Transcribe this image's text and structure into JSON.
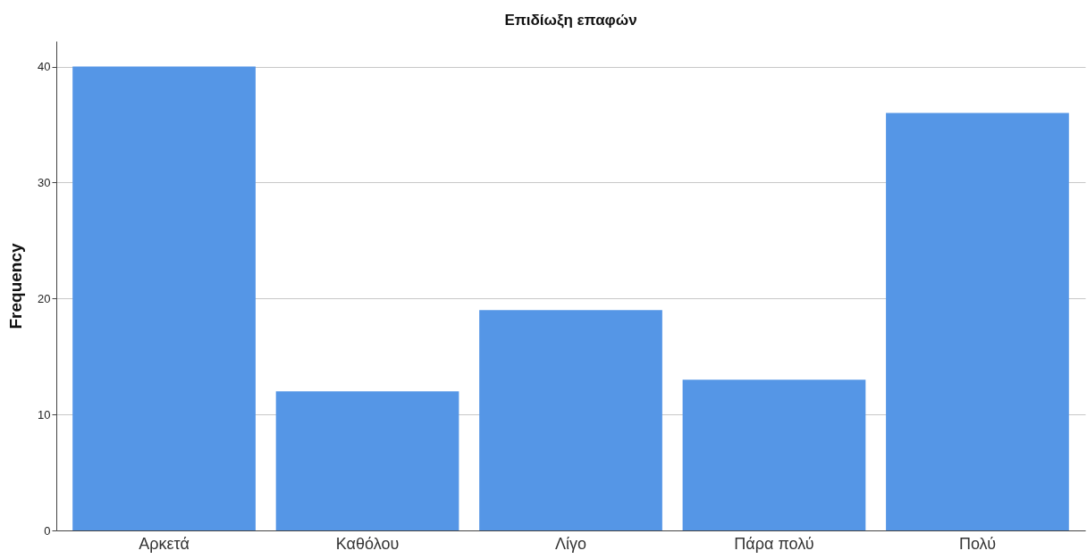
{
  "chart_data": {
    "type": "bar",
    "title": "Επιδίωξη επαφών",
    "ylabel": "Frequency",
    "categories": [
      "Αρκετά",
      "Καθόλου",
      "Λίγο",
      "Πάρα πολύ",
      "Πολύ"
    ],
    "values": [
      40,
      12,
      19,
      13,
      36
    ],
    "color": "#5596e6",
    "ylim": [
      0,
      42.2
    ],
    "yticks": [
      0,
      10,
      20,
      30,
      40
    ],
    "grid": "y"
  }
}
